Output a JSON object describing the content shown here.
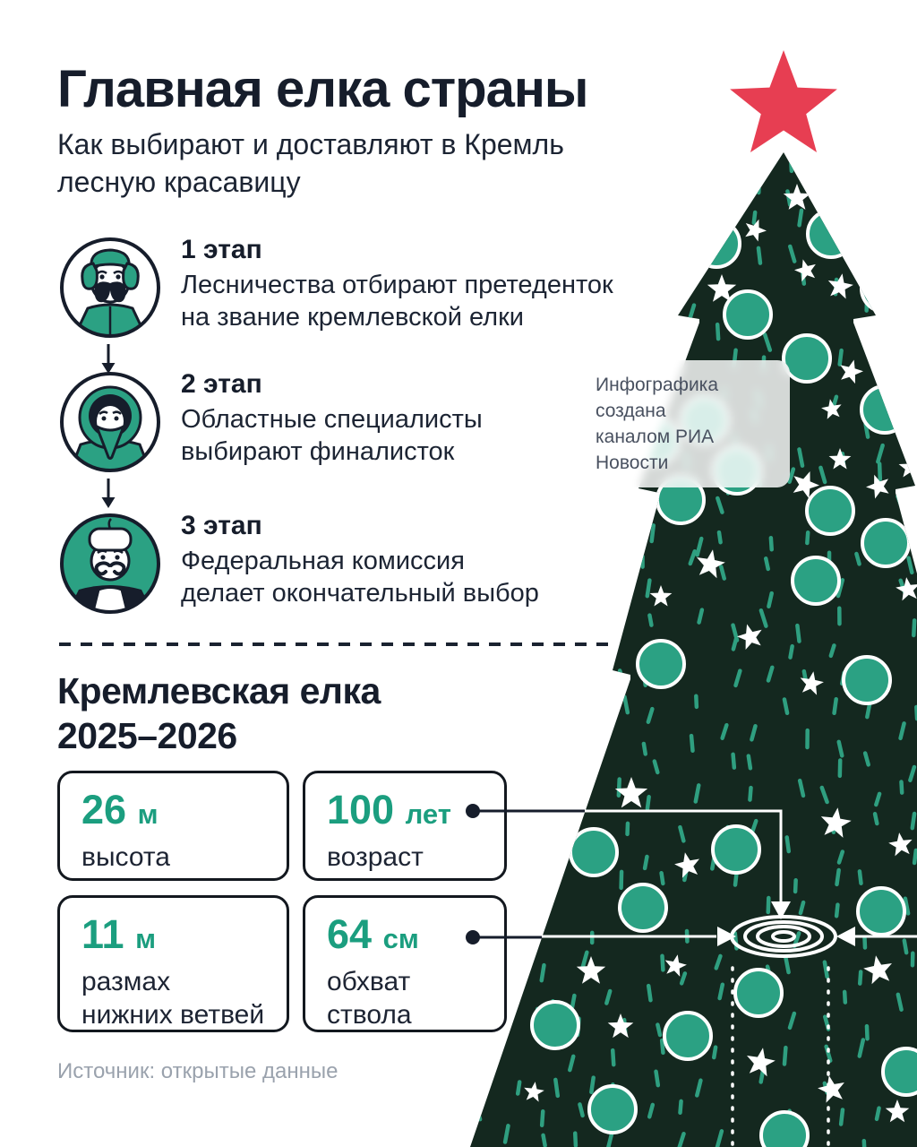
{
  "colors": {
    "ink": "#161d2b",
    "tree_green": "#14281f",
    "ornament_teal": "#2ba183",
    "dash_teal": "#2f9f80",
    "value_teal": "#1b9e7f",
    "star_red": "#e73e52",
    "muted_gray": "#9aa2ad",
    "white": "#ffffff"
  },
  "header": {
    "title": "Главная елка страны",
    "subtitle_lines": [
      "Как выбирают и доставляют в Кремль",
      "лесную красавицу"
    ]
  },
  "stages": [
    {
      "label": "1 этап",
      "description_lines": [
        "Лесничества отбирают претеденток",
        "на звание кремлевской елки"
      ],
      "avatar": "forester-in-ushanka"
    },
    {
      "label": "2 этап",
      "description_lines": [
        "Областные специалисты",
        "выбирают финалисток"
      ],
      "avatar": "specialist-in-hood"
    },
    {
      "label": "3 этап",
      "description_lines": [
        "Федеральная комиссия",
        "делает окончательный выбор"
      ],
      "avatar": "commissioner-in-fur-hat"
    }
  ],
  "badge": {
    "lines": [
      "Инфографика создана",
      "каналом РИА Новости"
    ]
  },
  "section": {
    "title_lines": [
      "Кремлевская елка",
      "2025–2026"
    ]
  },
  "stats": [
    {
      "value": "26",
      "unit": "м",
      "label_lines": [
        "высота"
      ],
      "connector": false
    },
    {
      "value": "100",
      "unit": "лет",
      "label_lines": [
        "возраст"
      ],
      "connector": true
    },
    {
      "value": "11",
      "unit": "м",
      "label_lines": [
        "размах",
        "нижних ветвей"
      ],
      "connector": false
    },
    {
      "value": "64",
      "unit": "см",
      "label_lines": [
        "обхват",
        "ствола"
      ],
      "connector": true
    }
  ],
  "source": "Источник: открытые данные"
}
